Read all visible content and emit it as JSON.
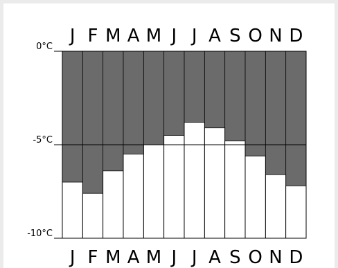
{
  "chart_data": {
    "type": "bar",
    "categories": [
      "J",
      "F",
      "M",
      "A",
      "M",
      "J",
      "J",
      "A",
      "S",
      "O",
      "N",
      "D"
    ],
    "values": [
      -7.0,
      -7.6,
      -6.4,
      -5.5,
      -5.0,
      -4.5,
      -3.8,
      -4.1,
      -4.8,
      -5.6,
      -6.6,
      -7.2
    ],
    "ylim": [
      -10,
      0
    ],
    "yticks": [
      0,
      -5,
      -10
    ],
    "ytick_labels": [
      "0°C",
      "-5°C",
      "-10°C"
    ],
    "bar_fill": "#ffffff",
    "background_fill": "#6b6b6b",
    "grid": true,
    "month_labels_top": true,
    "month_labels_bottom": true
  }
}
